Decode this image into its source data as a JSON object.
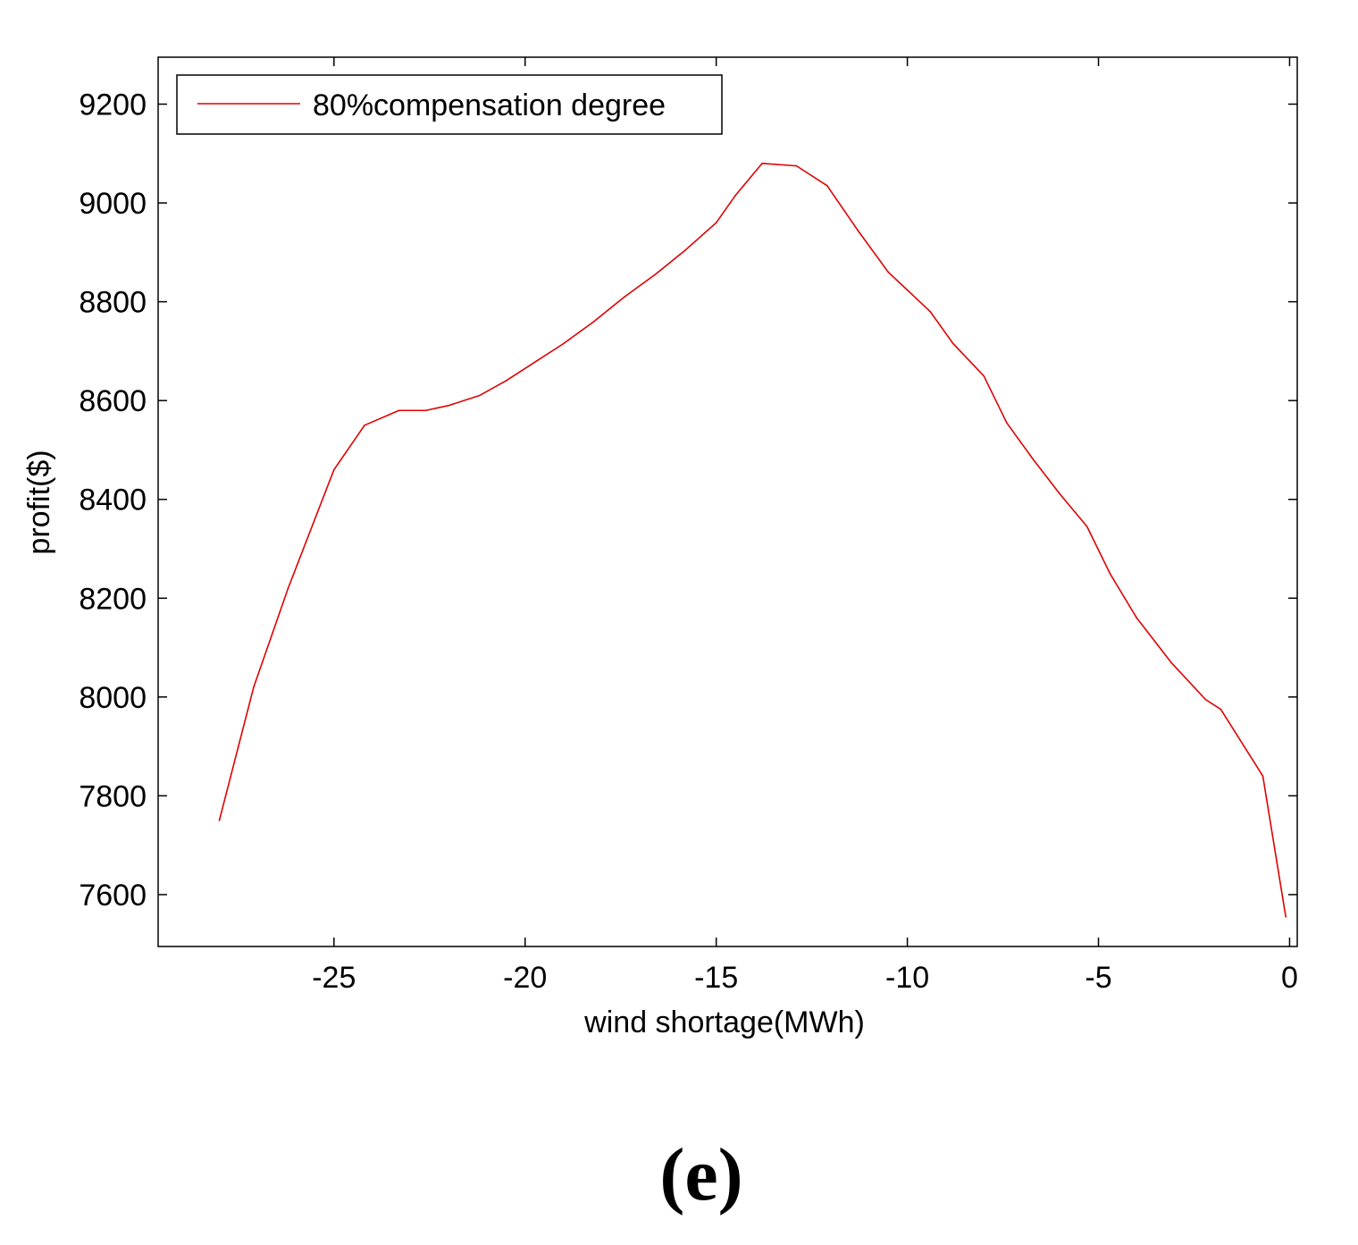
{
  "chart_data": {
    "type": "line",
    "title": "",
    "xlabel": "wind shortage(MWh)",
    "ylabel": "profit($)",
    "xlim": [
      -29.6,
      0.2
    ],
    "ylim": [
      7495,
      9295
    ],
    "xticks": [
      -25,
      -20,
      -15,
      -10,
      -5,
      0
    ],
    "xtick_labels": [
      "-25",
      "-20",
      "-15",
      "-10",
      "-5",
      "0"
    ],
    "yticks": [
      7600,
      7800,
      8000,
      8200,
      8400,
      8600,
      8800,
      9000,
      9200
    ],
    "ytick_labels": [
      "7600",
      "7800",
      "8000",
      "8200",
      "8400",
      "8600",
      "8800",
      "9000",
      "9200"
    ],
    "grid": false,
    "legend_position": "top-left",
    "series": [
      {
        "name": "80%compensation degree",
        "color": "#e00000",
        "x": [
          -28.0,
          -27.1,
          -26.2,
          -25.0,
          -24.2,
          -23.3,
          -22.6,
          -22.0,
          -21.2,
          -20.5,
          -19.7,
          -19.0,
          -18.2,
          -17.4,
          -16.6,
          -15.8,
          -15.0,
          -14.5,
          -13.8,
          -12.9,
          -12.1,
          -11.3,
          -10.5,
          -9.4,
          -8.8,
          -8.0,
          -7.4,
          -6.7,
          -6.0,
          -5.3,
          -4.7,
          -4.0,
          -3.1,
          -2.2,
          -1.8,
          -0.7,
          -0.1
        ],
        "y": [
          7750,
          8020,
          8220,
          8460,
          8550,
          8580,
          8580,
          8590,
          8610,
          8640,
          8680,
          8715,
          8760,
          8810,
          8855,
          8905,
          8960,
          9015,
          9080,
          9075,
          9035,
          8945,
          8860,
          8780,
          8715,
          8650,
          8555,
          8480,
          8410,
          8345,
          8250,
          8160,
          8070,
          7995,
          7975,
          7840,
          7555
        ]
      }
    ]
  },
  "panel_label": "(e)"
}
